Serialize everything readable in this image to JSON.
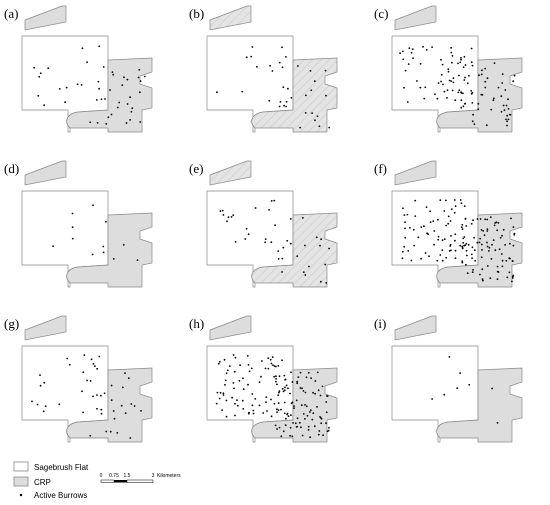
{
  "panels": [
    {
      "label": "(a)"
    },
    {
      "label": "(b)"
    },
    {
      "label": "(c)"
    },
    {
      "label": "(d)"
    },
    {
      "label": "(e)"
    },
    {
      "label": "(f)"
    },
    {
      "label": "(g)"
    },
    {
      "label": "(h)"
    },
    {
      "label": "(i)"
    }
  ],
  "legend": {
    "items": [
      {
        "label": "Sagebrush Flat"
      },
      {
        "label": "CRP"
      },
      {
        "label": "Active Burrows"
      }
    ]
  },
  "scale_bar": {
    "ticks": [
      "0",
      "0.75",
      "1.5",
      "3"
    ],
    "unit": "Kilometers"
  }
}
